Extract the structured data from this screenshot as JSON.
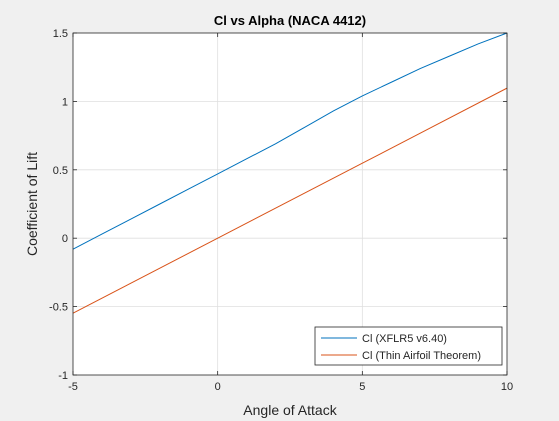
{
  "colors": {
    "figure_bg": "#f0f0f0",
    "axes_bg": "#ffffff",
    "grid": "#dfdfdf",
    "axis": "#262626"
  },
  "chart_data": {
    "type": "line",
    "title": "Cl vs Alpha (NACA 4412)",
    "xlabel": "Angle of Attack",
    "ylabel": "Coefficient of Lift",
    "xlim": [
      -5,
      10
    ],
    "ylim": [
      -1,
      1.5
    ],
    "xticks": [
      -5,
      0,
      5,
      10
    ],
    "xtick_labels": [
      "-5",
      "0",
      "5",
      "10"
    ],
    "yticks": [
      -1,
      -0.5,
      0,
      0.5,
      1,
      1.5
    ],
    "ytick_labels": [
      "-1",
      "-0.5",
      "0",
      "0.5",
      "1",
      "1.5"
    ],
    "grid": true,
    "legend_position": "bottom-right",
    "series": [
      {
        "name": "Cl (XFLR5 v6.40)",
        "color": "#0072bd",
        "x": [
          -5,
          -4,
          -3,
          -2,
          -1,
          0,
          1,
          2,
          3,
          4,
          5,
          6,
          7,
          8,
          9,
          10
        ],
        "y": [
          -0.08,
          0.03,
          0.14,
          0.25,
          0.36,
          0.47,
          0.58,
          0.69,
          0.81,
          0.93,
          1.04,
          1.14,
          1.24,
          1.33,
          1.42,
          1.5
        ]
      },
      {
        "name": "Cl (Thin Airfoil Theorem)",
        "color": "#d95319",
        "x": [
          -5,
          0,
          5,
          10
        ],
        "y": [
          -0.548,
          0.0,
          0.548,
          1.097
        ]
      }
    ]
  }
}
